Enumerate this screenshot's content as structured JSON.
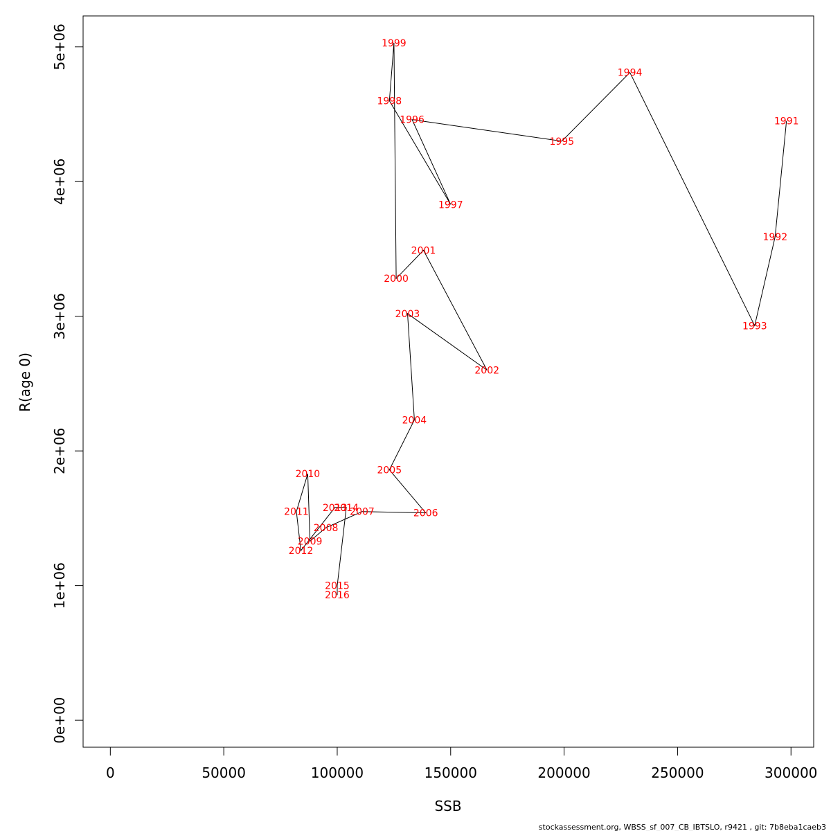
{
  "footer": "stockassessment.org, WBSS_sf_007_CB_IBTSLO, r9421 , git: 7b8eba1caeb3",
  "colors": {
    "labels": "#ff0000",
    "line": "#000000",
    "frame": "#000000"
  },
  "chart_data": {
    "type": "line",
    "title": "",
    "xlabel": "SSB",
    "ylabel": "R(age 0)",
    "xlim": [
      -12000,
      310000
    ],
    "ylim": [
      -200000,
      5230000
    ],
    "x_ticks": [
      0,
      50000,
      100000,
      150000,
      200000,
      250000,
      300000
    ],
    "x_tick_labels": [
      "0",
      "50000",
      "100000",
      "150000",
      "200000",
      "250000",
      "300000"
    ],
    "y_ticks": [
      0,
      1000000,
      2000000,
      3000000,
      4000000,
      5000000
    ],
    "y_tick_labels": [
      "0e+00",
      "1e+06",
      "2e+06",
      "3e+06",
      "4e+06",
      "5e+06"
    ],
    "grid": false,
    "points": [
      {
        "year": "1991",
        "ssb": 298000,
        "r": 4450000
      },
      {
        "year": "1992",
        "ssb": 293000,
        "r": 3590000
      },
      {
        "year": "1993",
        "ssb": 284000,
        "r": 2930000
      },
      {
        "year": "1994",
        "ssb": 229000,
        "r": 4810000
      },
      {
        "year": "1995",
        "ssb": 199000,
        "r": 4300000
      },
      {
        "year": "1996",
        "ssb": 133000,
        "r": 4460000
      },
      {
        "year": "1997",
        "ssb": 150000,
        "r": 3830000
      },
      {
        "year": "1998",
        "ssb": 123000,
        "r": 4600000
      },
      {
        "year": "1999",
        "ssb": 125000,
        "r": 5030000
      },
      {
        "year": "2000",
        "ssb": 126000,
        "r": 3280000
      },
      {
        "year": "2001",
        "ssb": 138000,
        "r": 3490000
      },
      {
        "year": "2002",
        "ssb": 166000,
        "r": 2600000
      },
      {
        "year": "2003",
        "ssb": 131000,
        "r": 3020000
      },
      {
        "year": "2004",
        "ssb": 134000,
        "r": 2230000
      },
      {
        "year": "2005",
        "ssb": 123000,
        "r": 1860000
      },
      {
        "year": "2006",
        "ssb": 139000,
        "r": 1540000
      },
      {
        "year": "2007",
        "ssb": 111000,
        "r": 1550000
      },
      {
        "year": "2008",
        "ssb": 95000,
        "r": 1430000
      },
      {
        "year": "2009",
        "ssb": 88000,
        "r": 1330000
      },
      {
        "year": "2010",
        "ssb": 87000,
        "r": 1830000
      },
      {
        "year": "2011",
        "ssb": 82000,
        "r": 1550000
      },
      {
        "year": "2012",
        "ssb": 84000,
        "r": 1260000
      },
      {
        "year": "2013",
        "ssb": 99000,
        "r": 1580000
      },
      {
        "year": "2014",
        "ssb": 104000,
        "r": 1580000
      },
      {
        "year": "2015",
        "ssb": 100000,
        "r": 1000000
      },
      {
        "year": "2016",
        "ssb": 100000,
        "r": 930000
      }
    ]
  }
}
